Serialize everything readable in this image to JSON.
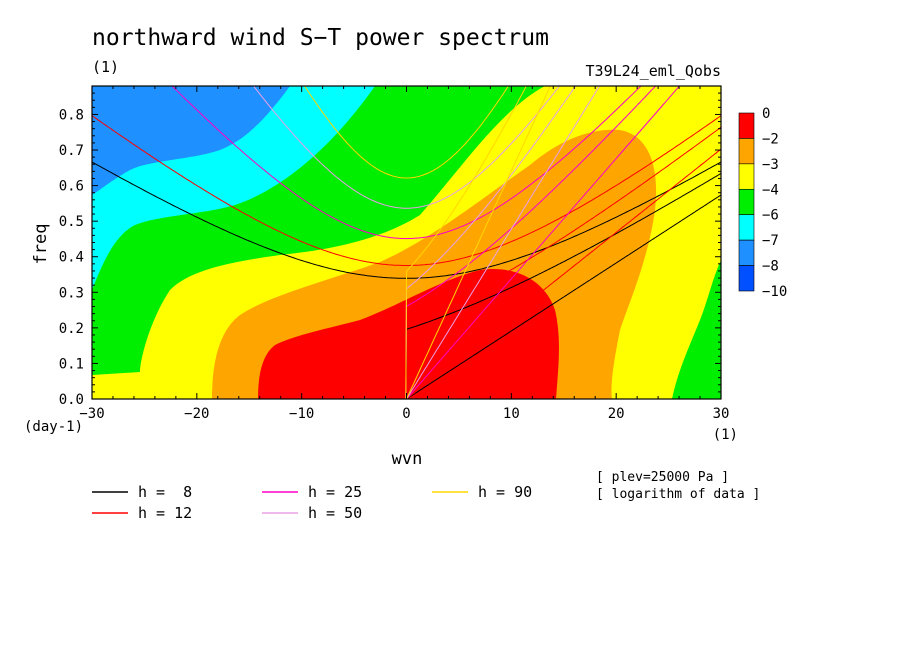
{
  "chart_data": {
    "type": "heatmap",
    "title": "northward wind S−T power spectrum",
    "subtitle_left": "(1)",
    "subtitle_right": "T39L24_eml_Qobs",
    "xlabel": "wvn",
    "ylabel": "freq",
    "x_unit": "(1)",
    "y_unit": "(day-1)",
    "xlim": [
      -30,
      30
    ],
    "ylim": [
      0,
      0.88
    ],
    "x_ticks": [
      -30,
      -20,
      -10,
      0,
      10,
      20,
      30
    ],
    "y_ticks": [
      0.0,
      0.1,
      0.2,
      0.3,
      0.4,
      0.5,
      0.6,
      0.7,
      0.8
    ],
    "notes": [
      "[ plev=25000 Pa ]",
      "[ logarithm of data ]"
    ],
    "colorbar": {
      "levels": [
        "0",
        "−2",
        "−3",
        "−4",
        "−6",
        "−7",
        "−8",
        "−10"
      ],
      "colors": [
        "#ff0000",
        "#ffa500",
        "#ffff00",
        "#00ee00",
        "#00ffff",
        "#1e90ff",
        "#0050ff"
      ]
    },
    "shaded_regions": [
      {
        "level": "-10 to -8",
        "color": "#0050ff",
        "approx_extent": "none visible"
      },
      {
        "level": "-8 to -7",
        "color": "#1e90ff",
        "approx_extent": "wvn -30 to -12, freq 0.6 to 0.88"
      },
      {
        "level": "-7 to -6",
        "color": "#00ffff",
        "approx_extent": "wvn -30 to -3, freq 0.3 to 0.88"
      },
      {
        "level": "-6 to -4",
        "color": "#00ee00",
        "approx_extent": "west and upper band; east edge wvn 26 to 30"
      },
      {
        "level": "-4 to -3",
        "color": "#ffff00",
        "approx_extent": "broad band across domain"
      },
      {
        "level": "-3 to -2",
        "color": "#ffa500",
        "approx_extent": "wvn -18 to 24, freq 0 to 0.76"
      },
      {
        "level": "-2 to 0",
        "color": "#ff0000",
        "approx_extent": "wvn -14 to 15, freq 0 to 0.36"
      }
    ],
    "dispersion_curves": [
      {
        "name": "h =  8",
        "color": "#000000"
      },
      {
        "name": "h = 12",
        "color": "#ff0000"
      },
      {
        "name": "h = 25",
        "color": "#ff00c8"
      },
      {
        "name": "h = 50",
        "color": "#e8a0e8"
      },
      {
        "name": "h = 90",
        "color": "#ffd700"
      }
    ]
  }
}
